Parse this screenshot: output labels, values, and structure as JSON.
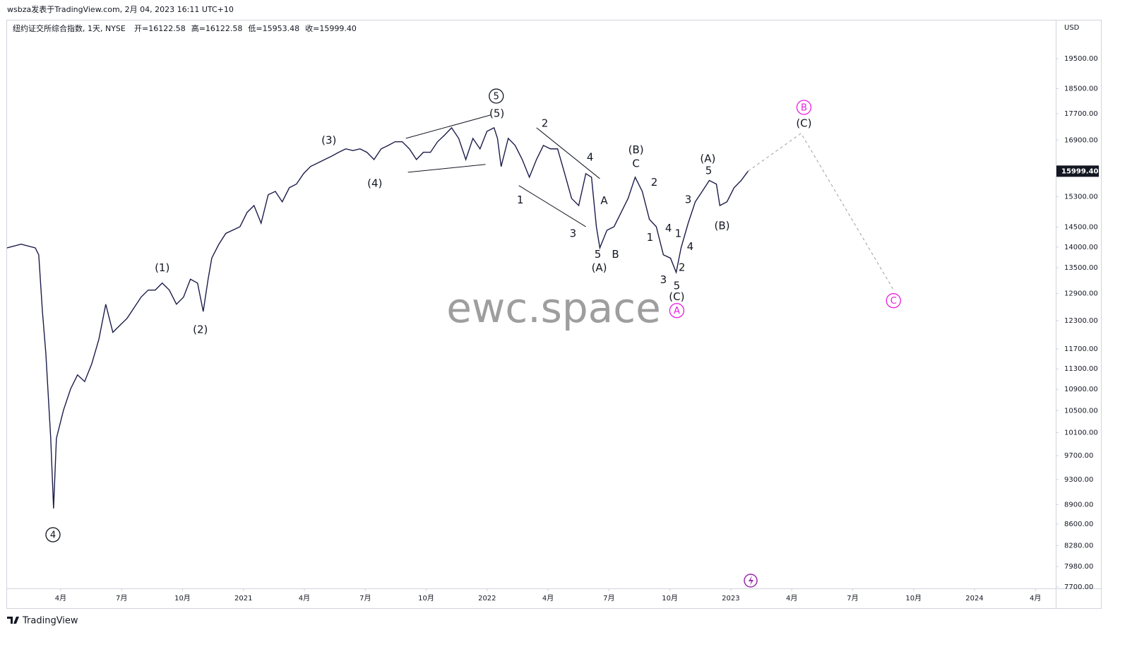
{
  "header": "wsbza发表于TradingView.com, 2月 04, 2023 16:11 UTC+10",
  "footer": "TradingView",
  "chart_data": {
    "type": "line",
    "symbol": "纽约证交所综合指数, 1天, NYSE",
    "ohlc_text": [
      "开=16122.58",
      "高=16122.58",
      "低=15953.48",
      "收=15999.40"
    ],
    "currency": "USD",
    "watermark": "ewc.space",
    "price_tag": "15999.40",
    "log_scale": true,
    "xlim": [
      0.36,
      52
    ],
    "ylim": [
      7680,
      20830
    ],
    "xticks": [
      {
        "value": 3,
        "label": "4月"
      },
      {
        "value": 6,
        "label": "7月"
      },
      {
        "value": 9,
        "label": "10月"
      },
      {
        "value": 12,
        "label": "2021"
      },
      {
        "value": 15,
        "label": "4月"
      },
      {
        "value": 18,
        "label": "7月"
      },
      {
        "value": 21,
        "label": "10月"
      },
      {
        "value": 24,
        "label": "2022"
      },
      {
        "value": 27,
        "label": "4月"
      },
      {
        "value": 30,
        "label": "7月"
      },
      {
        "value": 33,
        "label": "10月"
      },
      {
        "value": 36,
        "label": "2023"
      },
      {
        "value": 39,
        "label": "4月"
      },
      {
        "value": 42,
        "label": "7月"
      },
      {
        "value": 45,
        "label": "10月"
      },
      {
        "value": 48,
        "label": "2024"
      },
      {
        "value": 51,
        "label": "4月"
      }
    ],
    "yticks": [
      {
        "value": 19500,
        "label": "19500.00"
      },
      {
        "value": 18500,
        "label": "18500.00"
      },
      {
        "value": 17700,
        "label": "17700.00"
      },
      {
        "value": 16900,
        "label": "16900.00"
      },
      {
        "value": 15300,
        "label": "15300.00"
      },
      {
        "value": 14500,
        "label": "14500.00"
      },
      {
        "value": 14000,
        "label": "14000.00"
      },
      {
        "value": 13500,
        "label": "13500.00"
      },
      {
        "value": 12900,
        "label": "12900.00"
      },
      {
        "value": 12300,
        "label": "12300.00"
      },
      {
        "value": 11700,
        "label": "11700.00"
      },
      {
        "value": 11300,
        "label": "11300.00"
      },
      {
        "value": 10900,
        "label": "10900.00"
      },
      {
        "value": 10500,
        "label": "10500.00"
      },
      {
        "value": 10100,
        "label": "10100.00"
      },
      {
        "value": 9700,
        "label": "9700.00"
      },
      {
        "value": 9300,
        "label": "9300.00"
      },
      {
        "value": 8900,
        "label": "8900.00"
      },
      {
        "value": 8600,
        "label": "8600.00"
      },
      {
        "value": 8280,
        "label": "8280.00"
      },
      {
        "value": 7980,
        "label": "7980.00"
      },
      {
        "value": 7700,
        "label": "7700.00"
      }
    ],
    "series": [
      {
        "color": "#1c1c4a",
        "x": [
          0.36,
          1.05,
          1.75,
          1.92,
          2.1,
          2.27,
          2.51,
          2.65,
          2.79,
          3.14,
          3.49,
          3.83,
          4.18,
          4.53,
          4.88,
          5.22,
          5.57,
          5.92,
          6.27,
          6.61,
          6.96,
          7.31,
          7.66,
          8.0,
          8.35,
          8.7,
          9.05,
          9.39,
          9.74,
          10.02,
          10.26,
          10.44,
          10.79,
          11.13,
          11.83,
          12.18,
          12.52,
          12.87,
          13.22,
          13.57,
          13.91,
          14.26,
          14.61,
          14.96,
          15.3,
          15.65,
          16.0,
          16.35,
          16.69,
          17.04,
          17.39,
          17.74,
          18.08,
          18.43,
          18.78,
          19.13,
          19.47,
          19.82,
          20.17,
          20.52,
          20.86,
          21.21,
          21.56,
          21.91,
          22.25,
          22.6,
          22.95,
          23.3,
          23.65,
          23.99,
          24.34,
          24.51,
          24.69,
          25.04,
          25.38,
          25.73,
          26.08,
          26.43,
          26.77,
          27.12,
          27.47,
          27.82,
          28.16,
          28.51,
          28.86,
          29.14,
          29.38,
          29.55,
          29.9,
          30.25,
          30.6,
          30.94,
          31.29,
          31.64,
          31.99,
          32.33,
          32.68,
          33.03,
          33.31,
          33.55,
          33.9,
          34.25,
          34.59,
          34.94,
          35.29,
          35.46,
          35.81,
          36.16,
          36.51,
          36.85
        ],
        "values": [
          13980,
          14070,
          13980,
          13810,
          12510,
          11610,
          10000,
          8840,
          10000,
          10510,
          10910,
          11180,
          11050,
          11400,
          11900,
          12660,
          12050,
          12200,
          12350,
          12580,
          12820,
          12980,
          12980,
          13140,
          12980,
          12660,
          12820,
          13230,
          13140,
          12500,
          13230,
          13730,
          14070,
          14340,
          14510,
          14880,
          15060,
          14600,
          15350,
          15440,
          15160,
          15540,
          15640,
          15930,
          16130,
          16230,
          16330,
          16430,
          16540,
          16640,
          16590,
          16640,
          16540,
          16330,
          16640,
          16740,
          16850,
          16850,
          16640,
          16330,
          16540,
          16540,
          16850,
          17050,
          17270,
          16950,
          16330,
          16950,
          16640,
          17160,
          17270,
          16950,
          16130,
          16950,
          16740,
          16330,
          15830,
          16330,
          16740,
          16640,
          16640,
          15930,
          15250,
          15060,
          15930,
          15830,
          14510,
          13980,
          14420,
          14510,
          14880,
          15250,
          15830,
          15440,
          14700,
          14510,
          13810,
          13730,
          13390,
          13980,
          14600,
          15160,
          15440,
          15740,
          15640,
          15060,
          15160,
          15540,
          15740,
          15999.4
        ]
      },
      {
        "color": "#9e9e9e",
        "dashed": true,
        "x": [
          36.85,
          39.46,
          43.98
        ],
        "values": [
          15999.4,
          17100,
          13010
        ]
      }
    ],
    "trendlines": [
      {
        "x": [
          20.0,
          24.17
        ],
        "values": [
          16950,
          17660
        ]
      },
      {
        "x": [
          20.1,
          23.92
        ],
        "values": [
          15970,
          16190
        ]
      },
      {
        "x": [
          26.43,
          29.55
        ],
        "values": [
          17270,
          15790
        ]
      },
      {
        "x": [
          25.56,
          28.86
        ],
        "values": [
          15600,
          14510
        ]
      }
    ],
    "annotations": [
      {
        "text": "5",
        "x": 24.45,
        "y": 18260,
        "circled": true,
        "color": "#131722"
      },
      {
        "text": "(5)",
        "x": 24.48,
        "y": 17720,
        "color": "#131722"
      },
      {
        "text": "(3)",
        "x": 16.21,
        "y": 16910,
        "color": "#131722"
      },
      {
        "text": "(4)",
        "x": 18.47,
        "y": 15670,
        "color": "#131722"
      },
      {
        "text": "(1)",
        "x": 8.0,
        "y": 13510,
        "color": "#131722"
      },
      {
        "text": "(2)",
        "x": 9.88,
        "y": 12120,
        "color": "#131722"
      },
      {
        "text": "4",
        "x": 2.62,
        "y": 8440,
        "circled": true,
        "color": "#131722"
      },
      {
        "text": "2",
        "x": 26.84,
        "y": 17420,
        "color": "#131722"
      },
      {
        "text": "4",
        "x": 29.07,
        "y": 16410,
        "color": "#131722"
      },
      {
        "text": "1",
        "x": 25.63,
        "y": 15220,
        "color": "#131722"
      },
      {
        "text": "3",
        "x": 28.23,
        "y": 14350,
        "color": "#131722"
      },
      {
        "text": "5",
        "x": 29.45,
        "y": 13830,
        "color": "#131722"
      },
      {
        "text": "(A)",
        "x": 29.52,
        "y": 13510,
        "color": "#131722"
      },
      {
        "text": "A",
        "x": 29.76,
        "y": 15200,
        "color": "#131722"
      },
      {
        "text": "B",
        "x": 30.32,
        "y": 13830,
        "color": "#131722"
      },
      {
        "text": "(B)",
        "x": 31.33,
        "y": 16620,
        "color": "#131722"
      },
      {
        "text": "C",
        "x": 31.33,
        "y": 16230,
        "color": "#131722"
      },
      {
        "text": "2",
        "x": 32.23,
        "y": 15700,
        "color": "#131722"
      },
      {
        "text": "1",
        "x": 32.02,
        "y": 14250,
        "color": "#131722"
      },
      {
        "text": "4",
        "x": 32.93,
        "y": 14480,
        "color": "#131722"
      },
      {
        "text": "3",
        "x": 32.68,
        "y": 13230,
        "color": "#131722"
      },
      {
        "text": "5",
        "x": 33.34,
        "y": 13090,
        "color": "#131722"
      },
      {
        "text": "(C)",
        "x": 33.34,
        "y": 12840,
        "color": "#131722"
      },
      {
        "text": "A",
        "x": 33.34,
        "y": 12520,
        "circled": true,
        "color": "#e91ee0"
      },
      {
        "text": "1",
        "x": 33.41,
        "y": 14350,
        "color": "#131722"
      },
      {
        "text": "2",
        "x": 33.59,
        "y": 13520,
        "color": "#131722"
      },
      {
        "text": "4",
        "x": 34.0,
        "y": 14020,
        "color": "#131722"
      },
      {
        "text": "3",
        "x": 33.9,
        "y": 15230,
        "color": "#131722"
      },
      {
        "text": "(A)",
        "x": 34.87,
        "y": 16370,
        "color": "#131722"
      },
      {
        "text": "5",
        "x": 34.91,
        "y": 16030,
        "color": "#131722"
      },
      {
        "text": "(B)",
        "x": 35.57,
        "y": 14550,
        "color": "#131722"
      },
      {
        "text": "B",
        "x": 39.6,
        "y": 17900,
        "circled": true,
        "color": "#e91ee0"
      },
      {
        "text": "(C)",
        "x": 39.6,
        "y": 17420,
        "color": "#131722"
      },
      {
        "text": "C",
        "x": 44.01,
        "y": 12740,
        "circled": true,
        "color": "#e91ee0"
      }
    ]
  }
}
